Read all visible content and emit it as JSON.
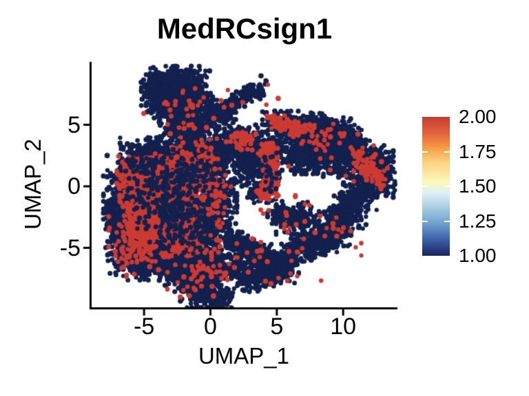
{
  "chart_data": {
    "type": "scatter",
    "title": "MedRCsign1",
    "xlabel": "UMAP_1",
    "ylabel": "UMAP_2",
    "x_ticks": [
      -5,
      0,
      5,
      10
    ],
    "y_ticks": [
      5,
      0,
      -5
    ],
    "xlim": [
      -9.1,
      14.1
    ],
    "ylim": [
      -10.1,
      10.1
    ],
    "grid": false,
    "legend_position": "right",
    "point_color_low": "#14204d",
    "point_color_high": "#cb3a33",
    "colorbar": {
      "labels": [
        "2.00",
        "1.75",
        "1.50",
        "1.25",
        "1.00"
      ],
      "values": [
        2.0,
        1.75,
        1.5,
        1.25,
        1.0
      ],
      "value_min": 1.0,
      "value_max": 2.0,
      "inner_tick_values": [
        1.75,
        1.5,
        1.25
      ],
      "gradient_stops": [
        {
          "color": "#c23b33",
          "pos": 0
        },
        {
          "color": "#e0603a",
          "pos": 11
        },
        {
          "color": "#f59b45",
          "pos": 22
        },
        {
          "color": "#fdd480",
          "pos": 33
        },
        {
          "color": "#fbf8c0",
          "pos": 47
        },
        {
          "color": "#dfeff3",
          "pos": 55
        },
        {
          "color": "#a3cbe1",
          "pos": 66
        },
        {
          "color": "#6f9fcb",
          "pos": 77
        },
        {
          "color": "#3d62ab",
          "pos": 88
        },
        {
          "color": "#19225c",
          "pos": 100
        }
      ]
    },
    "cluster_columns": [
      "x",
      "y",
      "sx",
      "sy",
      "n",
      "value",
      "angle_deg"
    ],
    "clusters": [
      [
        -2.9,
        8.0,
        1.05,
        0.8,
        500,
        1,
        0
      ],
      [
        -1.6,
        7.4,
        0.8,
        0.9,
        350,
        1,
        0
      ],
      [
        -2.8,
        6.5,
        0.9,
        0.7,
        300,
        1,
        0
      ],
      [
        -3.9,
        7.2,
        0.5,
        0.6,
        130,
        1,
        0
      ],
      [
        -2.0,
        5.4,
        0.85,
        0.75,
        280,
        1,
        0
      ],
      [
        -1.6,
        4.3,
        0.7,
        0.7,
        200,
        1,
        0
      ],
      [
        2.0,
        6.9,
        1.25,
        0.3,
        170,
        1,
        35
      ],
      [
        0.6,
        5.7,
        0.6,
        0.6,
        120,
        1,
        0
      ],
      [
        3.3,
        7.6,
        0.35,
        0.3,
        50,
        1,
        0
      ],
      [
        -4.6,
        2.2,
        1.0,
        0.8,
        280,
        1,
        0
      ],
      [
        -3.0,
        1.6,
        1.3,
        0.9,
        380,
        1,
        0
      ],
      [
        -1.2,
        2.2,
        1.0,
        0.9,
        300,
        1,
        0
      ],
      [
        -5.8,
        0.3,
        0.9,
        1.0,
        280,
        1,
        0
      ],
      [
        -6.3,
        -1.8,
        0.8,
        1.2,
        280,
        1,
        0
      ],
      [
        -7.0,
        -3.0,
        0.45,
        0.9,
        120,
        1,
        0
      ],
      [
        -5.0,
        -3.5,
        1.1,
        1.4,
        400,
        1,
        0
      ],
      [
        -6.2,
        -5.3,
        0.7,
        0.9,
        200,
        1,
        0
      ],
      [
        -4.9,
        -6.3,
        0.6,
        0.6,
        130,
        1,
        0
      ],
      [
        -3.2,
        -5.0,
        1.3,
        1.2,
        450,
        1,
        0
      ],
      [
        -1.2,
        -4.0,
        1.2,
        1.5,
        450,
        1,
        0
      ],
      [
        -0.2,
        -1.8,
        1.0,
        1.3,
        350,
        1,
        0
      ],
      [
        -1.8,
        -6.8,
        0.9,
        0.8,
        250,
        1,
        0
      ],
      [
        -0.2,
        -6.5,
        0.8,
        0.9,
        250,
        1,
        0
      ],
      [
        0.5,
        0.3,
        0.6,
        1.0,
        180,
        1,
        0
      ],
      [
        0.6,
        2.9,
        0.55,
        0.8,
        150,
        1,
        0
      ],
      [
        -0.5,
        -8.3,
        0.8,
        0.7,
        200,
        1,
        0
      ],
      [
        0.6,
        -9.2,
        0.5,
        0.5,
        90,
        1,
        0
      ],
      [
        2.3,
        3.3,
        0.8,
        0.8,
        220,
        1,
        0
      ],
      [
        3.3,
        2.3,
        0.6,
        0.6,
        130,
        1,
        0
      ],
      [
        2.7,
        1.0,
        0.45,
        0.45,
        70,
        1,
        0
      ],
      [
        4.3,
        1.3,
        0.5,
        1.2,
        170,
        1,
        0
      ],
      [
        3.5,
        -0.5,
        0.35,
        0.35,
        50,
        1,
        0
      ],
      [
        4.9,
        3.0,
        0.4,
        0.5,
        70,
        1,
        0
      ],
      [
        5.9,
        4.9,
        0.9,
        0.55,
        200,
        1,
        0
      ],
      [
        7.3,
        4.4,
        0.85,
        0.55,
        180,
        1,
        0
      ],
      [
        8.7,
        4.6,
        0.85,
        0.6,
        190,
        1,
        0
      ],
      [
        10.1,
        4.0,
        0.7,
        0.6,
        150,
        1,
        0
      ],
      [
        10.9,
        3.1,
        0.5,
        0.55,
        100,
        1,
        0
      ],
      [
        7.9,
        3.1,
        1.15,
        0.95,
        400,
        1,
        0
      ],
      [
        9.4,
        2.5,
        0.8,
        0.8,
        220,
        1,
        0
      ],
      [
        6.6,
        2.2,
        0.5,
        0.5,
        90,
        1,
        0
      ],
      [
        11.9,
        1.3,
        0.85,
        1.0,
        280,
        1,
        0
      ],
      [
        12.9,
        0.8,
        0.45,
        0.7,
        130,
        1,
        0
      ],
      [
        11.2,
        -0.6,
        0.6,
        0.6,
        130,
        1,
        0
      ],
      [
        12.4,
        2.4,
        0.4,
        0.4,
        70,
        1,
        0
      ],
      [
        10.4,
        -1.9,
        0.6,
        0.7,
        160,
        1,
        0
      ],
      [
        9.5,
        -3.3,
        0.6,
        0.7,
        160,
        1,
        0
      ],
      [
        8.4,
        -4.4,
        0.7,
        0.6,
        160,
        1,
        0
      ],
      [
        7.1,
        -5.0,
        0.6,
        0.5,
        120,
        1,
        0
      ],
      [
        6.6,
        -2.6,
        0.75,
        0.6,
        160,
        1,
        0
      ],
      [
        5.3,
        -2.3,
        0.45,
        0.45,
        70,
        1,
        0
      ],
      [
        5.9,
        -5.9,
        0.4,
        0.4,
        60,
        1,
        0
      ],
      [
        5.0,
        -6.7,
        0.75,
        0.55,
        140,
        1,
        0
      ],
      [
        3.9,
        -5.9,
        0.8,
        0.55,
        160,
        1,
        0
      ],
      [
        2.7,
        -5.1,
        0.7,
        0.5,
        130,
        1,
        0
      ],
      [
        1.6,
        -4.3,
        0.45,
        0.4,
        70,
        1,
        0
      ],
      [
        2.1,
        -6.9,
        0.55,
        0.45,
        90,
        1,
        0
      ],
      [
        3.1,
        -7.6,
        0.6,
        0.45,
        100,
        1,
        0
      ],
      [
        4.4,
        -7.4,
        0.5,
        0.4,
        80,
        1,
        0
      ],
      [
        -4.3,
        -0.4,
        1.15,
        1.25,
        500,
        2,
        0
      ],
      [
        -3.1,
        -1.9,
        1.0,
        1.1,
        350,
        2,
        0
      ],
      [
        -2.4,
        0.4,
        0.95,
        0.85,
        280,
        2,
        0
      ],
      [
        -5.4,
        0.8,
        0.75,
        0.75,
        180,
        2,
        0
      ],
      [
        -4.6,
        -2.9,
        0.9,
        0.9,
        220,
        2,
        0
      ],
      [
        -2.8,
        -4.5,
        1.6,
        1.3,
        130,
        2,
        0
      ],
      [
        -1.3,
        2.3,
        1.3,
        0.9,
        90,
        2,
        0
      ],
      [
        -5.9,
        -4.8,
        0.8,
        1.2,
        70,
        2,
        0
      ],
      [
        -0.6,
        -6.8,
        1.2,
        1.0,
        45,
        2,
        0
      ],
      [
        -2.3,
        5.9,
        1.3,
        1.1,
        30,
        2,
        0
      ],
      [
        0.2,
        -0.8,
        0.7,
        1.0,
        60,
        2,
        0
      ],
      [
        4.55,
        1.3,
        0.26,
        1.0,
        200,
        2,
        0
      ],
      [
        4.35,
        2.7,
        0.35,
        0.35,
        50,
        2,
        0
      ],
      [
        4.0,
        -0.4,
        0.25,
        0.3,
        30,
        2,
        0
      ],
      [
        2.5,
        3.7,
        0.45,
        0.4,
        50,
        2,
        0
      ],
      [
        5.7,
        5.0,
        0.5,
        0.35,
        45,
        2,
        0
      ],
      [
        6.7,
        4.7,
        0.35,
        0.3,
        28,
        2,
        0
      ],
      [
        4.9,
        5.2,
        0.3,
        0.25,
        20,
        2,
        0
      ],
      [
        8.0,
        4.2,
        0.8,
        0.5,
        25,
        2,
        0
      ],
      [
        11.9,
        1.5,
        0.5,
        0.5,
        55,
        2,
        0
      ],
      [
        12.7,
        0.6,
        0.3,
        0.4,
        22,
        2,
        0
      ],
      [
        11.1,
        2.6,
        0.25,
        0.25,
        14,
        2,
        0
      ],
      [
        3.5,
        -5.8,
        2.2,
        1.2,
        28,
        2,
        0
      ],
      [
        8.5,
        -3.5,
        1.5,
        1.2,
        18,
        2,
        0
      ],
      [
        9.0,
        2.8,
        1.5,
        1.0,
        20,
        2,
        0
      ],
      [
        2.0,
        6.5,
        1.5,
        0.8,
        12,
        2,
        0
      ],
      [
        5.8,
        -2.5,
        1.2,
        0.8,
        14,
        2,
        0
      ],
      [
        -3.6,
        -0.9,
        1.4,
        1.4,
        170,
        1,
        0
      ],
      [
        -2.3,
        -3.0,
        1.2,
        1.2,
        130,
        1,
        0
      ],
      [
        -1.5,
        1.0,
        1.0,
        0.9,
        90,
        1,
        0
      ],
      [
        4.5,
        1.0,
        0.3,
        0.8,
        25,
        1,
        0
      ],
      [
        -4.8,
        1.6,
        0.9,
        0.7,
        70,
        1,
        0
      ]
    ]
  }
}
